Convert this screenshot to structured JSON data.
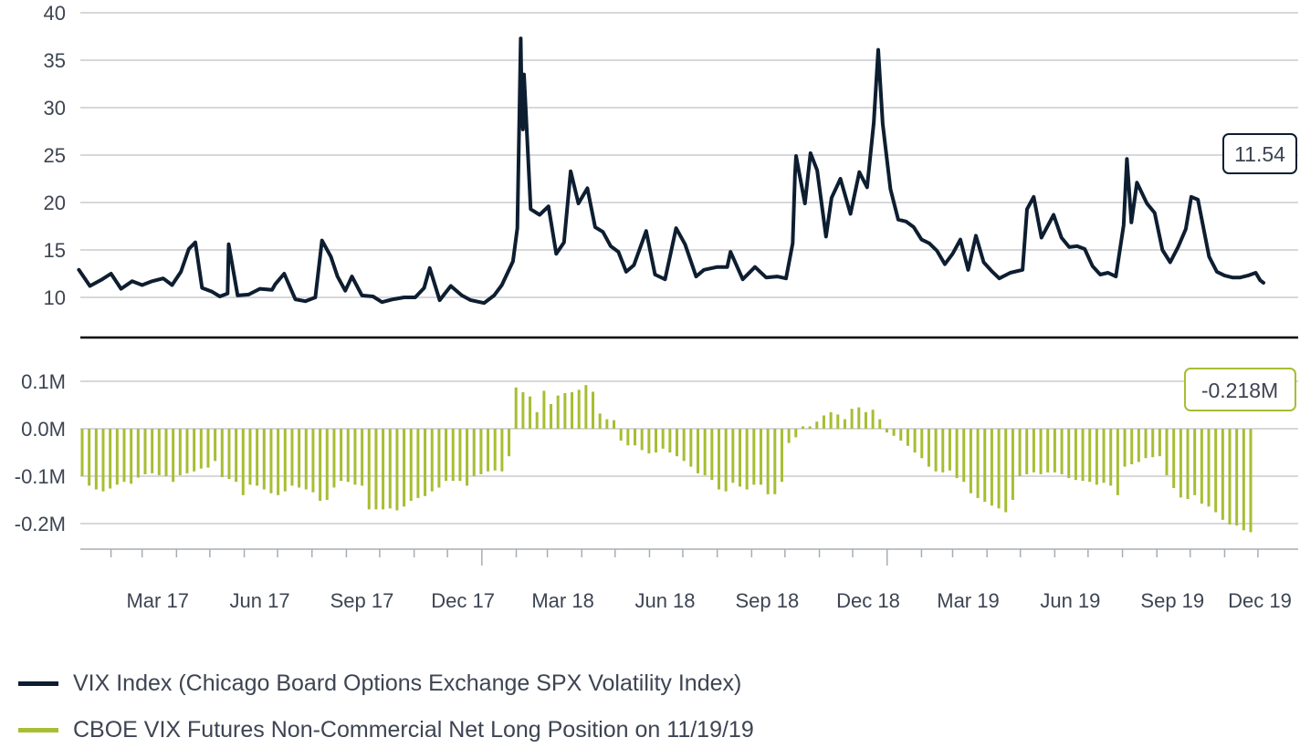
{
  "chart_data": [
    {
      "type": "line",
      "ylim": [
        9,
        40
      ],
      "y_ticks": [
        "10",
        "15",
        "20",
        "25",
        "30",
        "35",
        "40"
      ],
      "grid": true,
      "x_start": "2017-01-06",
      "x_end": "2019-12-06",
      "x_ticks": [
        "Mar 17",
        "Jun 17",
        "Sep 17",
        "Dec 17",
        "Mar 18",
        "Jun 18",
        "Sep 18",
        "Dec 18",
        "Mar 19",
        "Jun 19",
        "Sep 19",
        "Dec 19"
      ],
      "last_value_label": "11.54",
      "series": [
        {
          "name": "VIX Index (Chicago Board Options Exchange SPX Volatility Index)",
          "color": "#0e1e31",
          "points": [
            [
              "2017-01-03",
              12.9
            ],
            [
              "2017-01-13",
              11.2
            ],
            [
              "2017-01-24",
              11.9
            ],
            [
              "2017-02-01",
              12.5
            ],
            [
              "2017-02-10",
              10.9
            ],
            [
              "2017-02-20",
              11.7
            ],
            [
              "2017-03-01",
              11.3
            ],
            [
              "2017-03-10",
              11.7
            ],
            [
              "2017-03-20",
              12.0
            ],
            [
              "2017-03-28",
              11.3
            ],
            [
              "2017-04-05",
              12.7
            ],
            [
              "2017-04-12",
              15.1
            ],
            [
              "2017-04-18",
              15.8
            ],
            [
              "2017-04-24",
              11.0
            ],
            [
              "2017-05-03",
              10.6
            ],
            [
              "2017-05-10",
              10.1
            ],
            [
              "2017-05-17",
              10.4
            ],
            [
              "2017-05-18",
              15.6
            ],
            [
              "2017-05-26",
              10.2
            ],
            [
              "2017-06-05",
              10.3
            ],
            [
              "2017-06-15",
              10.9
            ],
            [
              "2017-06-26",
              10.8
            ],
            [
              "2017-06-29",
              11.4
            ],
            [
              "2017-07-07",
              12.5
            ],
            [
              "2017-07-17",
              9.8
            ],
            [
              "2017-07-26",
              9.6
            ],
            [
              "2017-08-04",
              10.0
            ],
            [
              "2017-08-10",
              16.0
            ],
            [
              "2017-08-18",
              14.3
            ],
            [
              "2017-08-24",
              12.2
            ],
            [
              "2017-08-31",
              10.7
            ],
            [
              "2017-09-06",
              12.2
            ],
            [
              "2017-09-15",
              10.2
            ],
            [
              "2017-09-25",
              10.1
            ],
            [
              "2017-10-03",
              9.5
            ],
            [
              "2017-10-13",
              9.8
            ],
            [
              "2017-10-23",
              10.0
            ],
            [
              "2017-11-02",
              10.0
            ],
            [
              "2017-11-10",
              11.0
            ],
            [
              "2017-11-15",
              13.1
            ],
            [
              "2017-11-24",
              9.7
            ],
            [
              "2017-12-04",
              11.2
            ],
            [
              "2017-12-14",
              10.2
            ],
            [
              "2017-12-22",
              9.7
            ],
            [
              "2018-01-03",
              9.4
            ],
            [
              "2018-01-12",
              10.2
            ],
            [
              "2018-01-19",
              11.3
            ],
            [
              "2018-01-29",
              13.8
            ],
            [
              "2018-02-02",
              17.3
            ],
            [
              "2018-02-05",
              37.3
            ],
            [
              "2018-02-06",
              29.9
            ],
            [
              "2018-02-07",
              27.7
            ],
            [
              "2018-02-08",
              33.5
            ],
            [
              "2018-02-14",
              19.3
            ],
            [
              "2018-02-22",
              18.7
            ],
            [
              "2018-03-02",
              19.6
            ],
            [
              "2018-03-09",
              14.6
            ],
            [
              "2018-03-16",
              15.8
            ],
            [
              "2018-03-22",
              23.3
            ],
            [
              "2018-03-29",
              19.9
            ],
            [
              "2018-04-06",
              21.5
            ],
            [
              "2018-04-13",
              17.4
            ],
            [
              "2018-04-20",
              16.9
            ],
            [
              "2018-04-27",
              15.4
            ],
            [
              "2018-05-04",
              14.8
            ],
            [
              "2018-05-11",
              12.7
            ],
            [
              "2018-05-18",
              13.4
            ],
            [
              "2018-05-29",
              17.0
            ],
            [
              "2018-06-06",
              12.4
            ],
            [
              "2018-06-15",
              11.9
            ],
            [
              "2018-06-25",
              17.3
            ],
            [
              "2018-07-03",
              15.6
            ],
            [
              "2018-07-13",
              12.2
            ],
            [
              "2018-07-20",
              12.9
            ],
            [
              "2018-08-01",
              13.2
            ],
            [
              "2018-08-10",
              13.2
            ],
            [
              "2018-08-13",
              14.8
            ],
            [
              "2018-08-24",
              11.9
            ],
            [
              "2018-09-04",
              13.2
            ],
            [
              "2018-09-14",
              12.1
            ],
            [
              "2018-09-24",
              12.2
            ],
            [
              "2018-10-02",
              12.0
            ],
            [
              "2018-10-08",
              15.7
            ],
            [
              "2018-10-10",
              22.9
            ],
            [
              "2018-10-11",
              24.9
            ],
            [
              "2018-10-19",
              19.9
            ],
            [
              "2018-10-24",
              25.2
            ],
            [
              "2018-10-30",
              23.4
            ],
            [
              "2018-11-07",
              16.4
            ],
            [
              "2018-11-12",
              20.5
            ],
            [
              "2018-11-20",
              22.5
            ],
            [
              "2018-11-29",
              18.8
            ],
            [
              "2018-12-07",
              23.2
            ],
            [
              "2018-12-14",
              21.6
            ],
            [
              "2018-12-20",
              28.4
            ],
            [
              "2018-12-24",
              36.1
            ],
            [
              "2018-12-28",
              28.3
            ],
            [
              "2019-01-04",
              21.4
            ],
            [
              "2019-01-11",
              18.2
            ],
            [
              "2019-01-18",
              18.0
            ],
            [
              "2019-01-25",
              17.4
            ],
            [
              "2019-02-01",
              16.1
            ],
            [
              "2019-02-08",
              15.7
            ],
            [
              "2019-02-15",
              14.9
            ],
            [
              "2019-02-22",
              13.5
            ],
            [
              "2019-03-01",
              14.6
            ],
            [
              "2019-03-08",
              16.1
            ],
            [
              "2019-03-15",
              12.9
            ],
            [
              "2019-03-22",
              16.5
            ],
            [
              "2019-03-29",
              13.7
            ],
            [
              "2019-04-05",
              12.8
            ],
            [
              "2019-04-12",
              12.0
            ],
            [
              "2019-04-22",
              12.6
            ],
            [
              "2019-05-03",
              12.9
            ],
            [
              "2019-05-07",
              19.3
            ],
            [
              "2019-05-13",
              20.6
            ],
            [
              "2019-05-20",
              16.3
            ],
            [
              "2019-05-31",
              18.7
            ],
            [
              "2019-06-07",
              16.3
            ],
            [
              "2019-06-14",
              15.3
            ],
            [
              "2019-06-21",
              15.4
            ],
            [
              "2019-06-28",
              15.1
            ],
            [
              "2019-07-05",
              13.3
            ],
            [
              "2019-07-12",
              12.4
            ],
            [
              "2019-07-19",
              12.6
            ],
            [
              "2019-07-26",
              12.2
            ],
            [
              "2019-08-02",
              17.6
            ],
            [
              "2019-08-05",
              24.6
            ],
            [
              "2019-08-09",
              17.9
            ],
            [
              "2019-08-14",
              22.1
            ],
            [
              "2019-08-23",
              19.9
            ],
            [
              "2019-08-30",
              18.9
            ],
            [
              "2019-09-06",
              15.0
            ],
            [
              "2019-09-13",
              13.7
            ],
            [
              "2019-09-20",
              15.3
            ],
            [
              "2019-09-27",
              17.2
            ],
            [
              "2019-10-02",
              20.6
            ],
            [
              "2019-10-08",
              20.3
            ],
            [
              "2019-10-18",
              14.3
            ],
            [
              "2019-10-25",
              12.7
            ],
            [
              "2019-11-01",
              12.3
            ],
            [
              "2019-11-08",
              12.1
            ],
            [
              "2019-11-15",
              12.1
            ],
            [
              "2019-11-22",
              12.3
            ],
            [
              "2019-11-29",
              12.6
            ],
            [
              "2019-12-03",
              11.8
            ],
            [
              "2019-12-06",
              11.54
            ]
          ]
        }
      ]
    },
    {
      "type": "bar",
      "ylim": [
        -0.22,
        0.1
      ],
      "y_ticks": [
        "0.1M",
        "0.0M",
        "-0.1M",
        "-0.2M"
      ],
      "grid": true,
      "last_value_label": "-0.218M",
      "series": [
        {
          "name": "CBOE VIX Futures Non-Commercial Net Long Position on 11/19/19",
          "color": "#a8bd33",
          "values": [
            -0.1,
            -0.12,
            -0.128,
            -0.132,
            -0.126,
            -0.118,
            -0.112,
            -0.116,
            -0.103,
            -0.096,
            -0.094,
            -0.098,
            -0.1,
            -0.112,
            -0.098,
            -0.094,
            -0.09,
            -0.084,
            -0.082,
            -0.068,
            -0.102,
            -0.106,
            -0.112,
            -0.14,
            -0.118,
            -0.12,
            -0.128,
            -0.136,
            -0.14,
            -0.132,
            -0.12,
            -0.124,
            -0.128,
            -0.134,
            -0.152,
            -0.15,
            -0.124,
            -0.11,
            -0.112,
            -0.118,
            -0.12,
            -0.17,
            -0.17,
            -0.17,
            -0.168,
            -0.172,
            -0.164,
            -0.152,
            -0.146,
            -0.142,
            -0.132,
            -0.124,
            -0.11,
            -0.11,
            -0.11,
            -0.12,
            -0.1,
            -0.096,
            -0.09,
            -0.088,
            -0.09,
            -0.058,
            0.087,
            0.077,
            0.068,
            0.035,
            0.08,
            0.052,
            0.07,
            0.075,
            0.077,
            0.082,
            0.092,
            0.078,
            0.032,
            0.02,
            0.018,
            -0.025,
            -0.035,
            -0.035,
            -0.045,
            -0.052,
            -0.05,
            -0.042,
            -0.05,
            -0.058,
            -0.068,
            -0.08,
            -0.094,
            -0.098,
            -0.108,
            -0.128,
            -0.132,
            -0.114,
            -0.122,
            -0.128,
            -0.118,
            -0.118,
            -0.138,
            -0.138,
            -0.112,
            -0.03,
            -0.018,
            0.005,
            0.005,
            0.015,
            0.028,
            0.035,
            0.03,
            0.02,
            0.042,
            0.045,
            0.035,
            0.04,
            0.02,
            -0.008,
            -0.015,
            -0.025,
            -0.036,
            -0.05,
            -0.062,
            -0.08,
            -0.09,
            -0.092,
            -0.088,
            -0.104,
            -0.112,
            -0.136,
            -0.146,
            -0.154,
            -0.162,
            -0.168,
            -0.176,
            -0.15,
            -0.1,
            -0.096,
            -0.092,
            -0.096,
            -0.092,
            -0.092,
            -0.096,
            -0.104,
            -0.108,
            -0.11,
            -0.112,
            -0.118,
            -0.114,
            -0.12,
            -0.14,
            -0.08,
            -0.075,
            -0.07,
            -0.062,
            -0.06,
            -0.058,
            -0.098,
            -0.125,
            -0.145,
            -0.148,
            -0.14,
            -0.158,
            -0.164,
            -0.176,
            -0.192,
            -0.202,
            -0.204,
            -0.214,
            -0.218
          ]
        }
      ]
    }
  ],
  "legend": [
    {
      "label": "VIX Index (Chicago Board Options Exchange SPX Volatility Index)",
      "color": "#0e1e31"
    },
    {
      "label": "CBOE VIX Futures Non-Commercial Net Long Position on 11/19/19",
      "color": "#a8bd33"
    }
  ]
}
